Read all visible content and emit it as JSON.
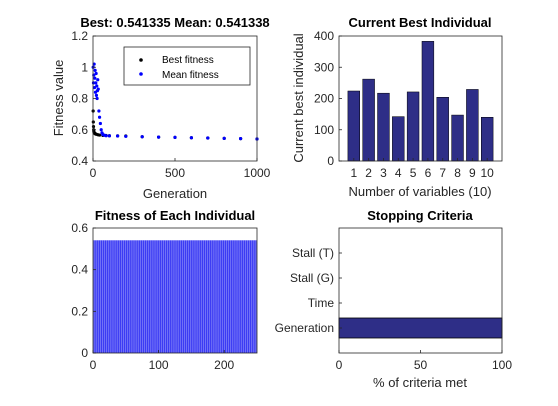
{
  "chart_data": [
    {
      "type": "scatter",
      "title": "Best: 0.541335 Mean: 0.541338",
      "xlabel": "Generation",
      "ylabel": "Fitness value",
      "xlim": [
        0,
        1000
      ],
      "ylim": [
        0.4,
        1.2
      ],
      "xticks": [
        "0",
        "500",
        "1000"
      ],
      "yticks": [
        "0.4",
        "0.6",
        "0.8",
        "1",
        "1.2"
      ],
      "legend_position": "top-right",
      "series": [
        {
          "name": "Best fitness",
          "color": "#000000",
          "x": [
            1,
            2,
            3,
            4,
            5,
            6,
            8,
            10,
            13,
            16,
            20,
            30,
            40,
            60,
            80,
            100,
            150,
            200,
            300,
            400,
            500,
            600,
            700,
            800,
            900,
            1000
          ],
          "y": [
            0.72,
            0.65,
            0.62,
            0.6,
            0.59,
            0.585,
            0.58,
            0.578,
            0.575,
            0.573,
            0.571,
            0.568,
            0.566,
            0.564,
            0.563,
            0.562,
            0.561,
            0.56,
            0.555,
            0.553,
            0.551,
            0.549,
            0.547,
            0.545,
            0.543,
            0.541
          ]
        },
        {
          "name": "Mean fitness",
          "color": "#0000ff",
          "x": [
            1,
            3,
            5,
            7,
            9,
            11,
            13,
            15,
            17,
            19,
            21,
            23,
            25,
            27,
            29,
            32,
            36,
            40,
            45,
            50,
            55,
            60,
            70,
            80,
            100,
            150,
            200,
            300,
            400,
            500,
            600,
            700,
            800,
            900,
            1000
          ],
          "y": [
            1.0,
            0.9,
            0.95,
            1.02,
            0.87,
            0.93,
            0.98,
            0.84,
            0.9,
            0.96,
            0.82,
            0.88,
            0.8,
            0.85,
            0.92,
            0.86,
            0.72,
            0.68,
            0.64,
            0.6,
            0.58,
            0.57,
            0.565,
            0.562,
            0.561,
            0.56,
            0.558,
            0.555,
            0.553,
            0.551,
            0.549,
            0.547,
            0.545,
            0.543,
            0.541
          ]
        }
      ]
    },
    {
      "type": "bar",
      "title": "Current Best Individual",
      "xlabel": "Number of variables (10)",
      "ylabel": "Current best individual",
      "color": "#2e2e87",
      "categories": [
        "1",
        "2",
        "3",
        "4",
        "5",
        "6",
        "7",
        "8",
        "9",
        "10"
      ],
      "values": [
        224,
        262,
        217,
        142,
        221,
        383,
        204,
        147,
        229,
        140
      ],
      "ylim": [
        0,
        400
      ],
      "yticks": [
        "0",
        "100",
        "200",
        "300",
        "400"
      ]
    },
    {
      "type": "bar",
      "title": "Fitness of Each Individual",
      "xlabel": "",
      "ylabel": "",
      "color": "#1f1ff2",
      "n_individuals": 250,
      "value": 0.541,
      "xlim": [
        0,
        250
      ],
      "ylim": [
        0,
        0.6
      ],
      "xticks": [
        "0",
        "100",
        "200"
      ],
      "yticks": [
        "0",
        "0.2",
        "0.4",
        "0.6"
      ]
    },
    {
      "type": "bar",
      "orientation": "horizontal",
      "title": "Stopping Criteria",
      "xlabel": "% of criteria met",
      "ylabel": "",
      "color": "#2e2e87",
      "categories": [
        "Generation",
        "Time",
        "Stall (G)",
        "Stall (T)"
      ],
      "values": [
        100,
        0,
        0,
        0
      ],
      "xlim": [
        0,
        100
      ],
      "xticks": [
        "0",
        "50",
        "100"
      ]
    }
  ]
}
